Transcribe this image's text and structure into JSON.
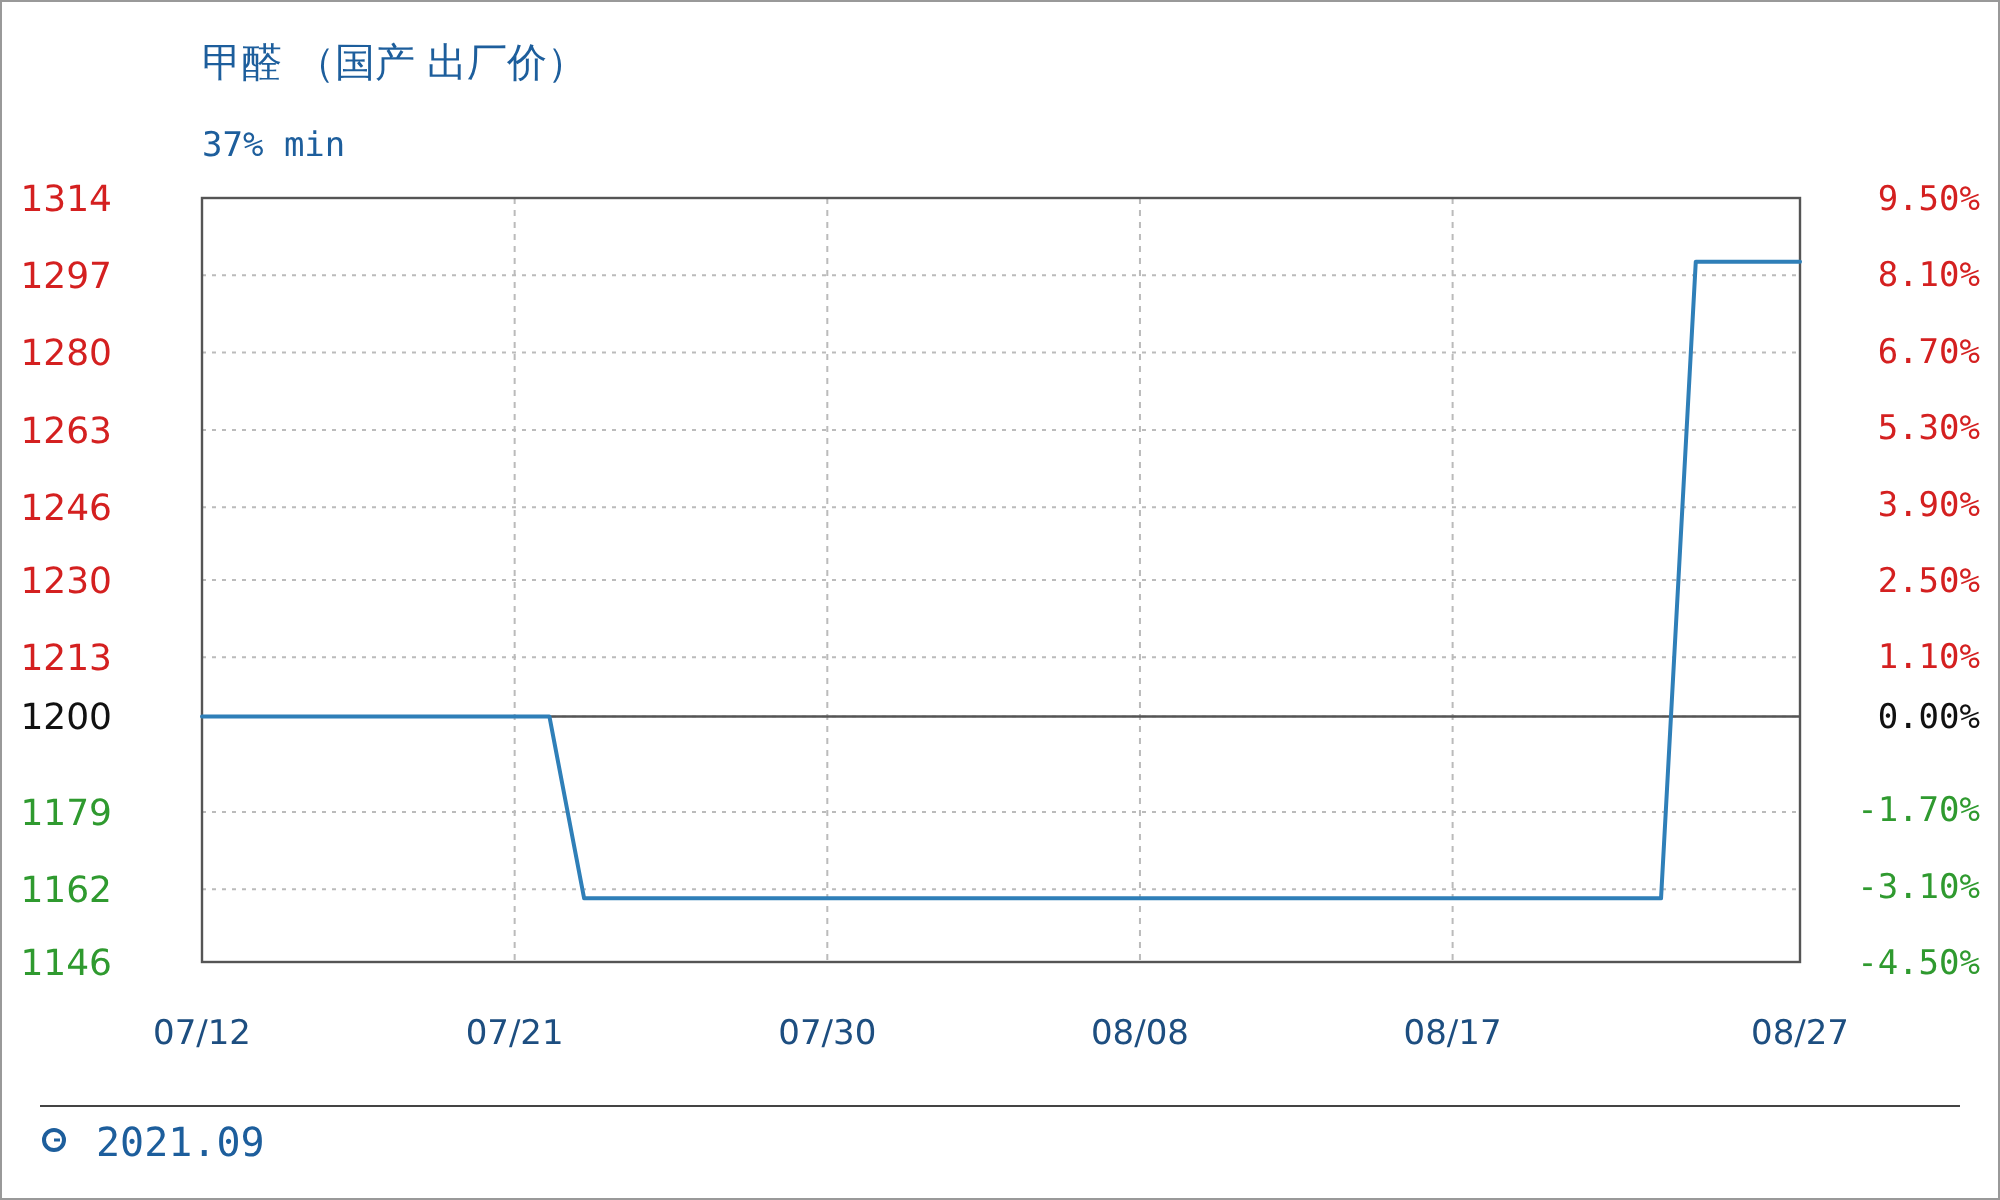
{
  "chart_data": {
    "type": "line",
    "title": "甲醛 （国产 出厂价）",
    "subtitle": "37% min",
    "x": [
      "2021-07-12",
      "2021-07-22",
      "2021-07-23",
      "2021-08-23",
      "2021-08-24",
      "2021-08-27"
    ],
    "series": [
      {
        "color": "#2f7fb8",
        "values": [
          1200,
          1200,
          1160,
          1160,
          1300,
          1300
        ]
      }
    ],
    "xlim": [
      "2021-07-12",
      "2021-08-27"
    ],
    "xticks": [
      {
        "value": "2021-07-12",
        "label": "07/12"
      },
      {
        "value": "2021-07-21",
        "label": "07/21"
      },
      {
        "value": "2021-07-30",
        "label": "07/30"
      },
      {
        "value": "2021-08-08",
        "label": "08/08"
      },
      {
        "value": "2021-08-17",
        "label": "08/17"
      },
      {
        "value": "2021-08-27",
        "label": "08/27"
      }
    ],
    "ylim": [
      1146,
      1314
    ],
    "yticks": [
      1146,
      1162,
      1179,
      1200,
      1213,
      1230,
      1246,
      1263,
      1280,
      1297,
      1314
    ],
    "y2lim": [
      -4.5,
      9.5
    ],
    "y2ticks": [
      {
        "value": -4.5,
        "label": "-4.50%"
      },
      {
        "value": -3.1,
        "label": "-3.10%"
      },
      {
        "value": -1.7,
        "label": "-1.70%"
      },
      {
        "value": 0,
        "label": "0.00%"
      },
      {
        "value": 1.1,
        "label": "1.10%"
      },
      {
        "value": 2.5,
        "label": "2.50%"
      },
      {
        "value": 3.9,
        "label": "3.90%"
      },
      {
        "value": 5.3,
        "label": "5.30%"
      },
      {
        "value": 6.7,
        "label": "6.70%"
      },
      {
        "value": 8.1,
        "label": "8.10%"
      },
      {
        "value": 9.5,
        "label": "9.50%"
      }
    ],
    "ref_lines": [
      {
        "axis": "y",
        "value": 1200,
        "color": "#555555"
      }
    ],
    "grid": true,
    "line_style": "solid",
    "annotations": [
      "2021.09"
    ]
  }
}
